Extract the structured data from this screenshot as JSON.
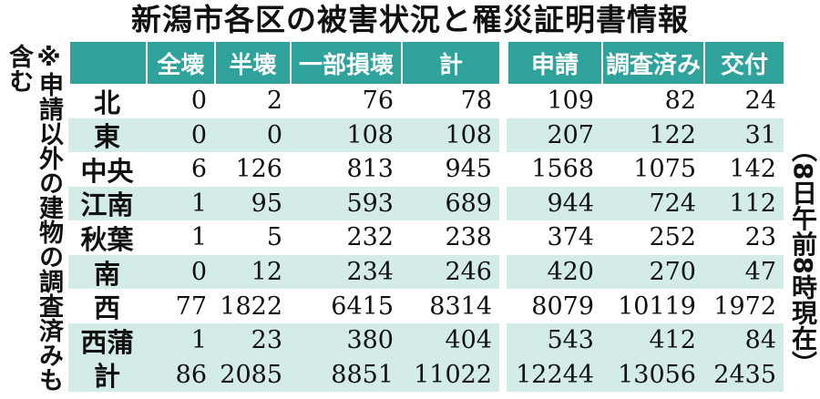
{
  "title": "新潟市各区の被害状況と罹災証明書情報",
  "note": "※申請以外の建物の調査済みも含む",
  "date_note": "（8日午前8時現在）",
  "table": {
    "header": [
      "全壊",
      "半壊",
      "一部損壊",
      "計",
      "申請",
      "調査済み",
      "交付"
    ],
    "rows": [
      {
        "label": "北",
        "values": [
          0,
          2,
          76,
          78,
          109,
          82,
          24
        ]
      },
      {
        "label": "東",
        "values": [
          0,
          0,
          108,
          108,
          207,
          122,
          31
        ]
      },
      {
        "label": "中央",
        "values": [
          6,
          126,
          813,
          945,
          1568,
          1075,
          142
        ]
      },
      {
        "label": "江南",
        "values": [
          1,
          95,
          593,
          689,
          944,
          724,
          112
        ]
      },
      {
        "label": "秋葉",
        "values": [
          1,
          5,
          232,
          238,
          374,
          252,
          23
        ]
      },
      {
        "label": "南",
        "values": [
          0,
          12,
          234,
          246,
          420,
          270,
          47
        ]
      },
      {
        "label": "西",
        "values": [
          77,
          1822,
          6415,
          8314,
          8079,
          10119,
          1972
        ]
      },
      {
        "label": "西蒲",
        "values": [
          1,
          23,
          380,
          404,
          543,
          412,
          84
        ]
      },
      {
        "label": "計",
        "values": [
          86,
          2085,
          8851,
          11022,
          12244,
          13056,
          2435
        ]
      }
    ]
  }
}
